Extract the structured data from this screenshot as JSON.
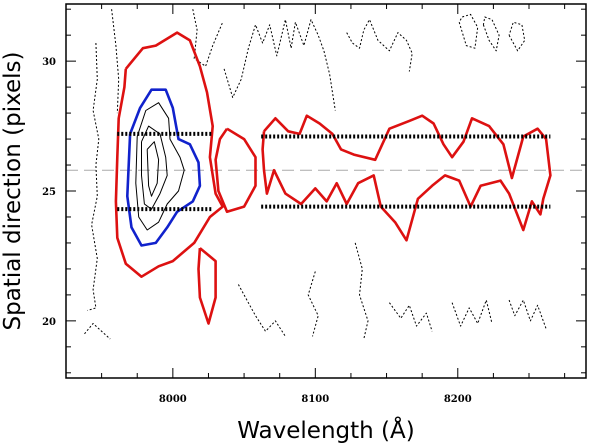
{
  "chart_data": {
    "type": "contour",
    "title": "",
    "xlabel": "Wavelength (Å)",
    "ylabel": "Spatial direction (pixels)",
    "xlim": [
      7925,
      8290
    ],
    "ylim": [
      17.8,
      32.2
    ],
    "x_ticks": [
      {
        "value": 8000,
        "label": "8000"
      },
      {
        "value": 8100,
        "label": "8100"
      },
      {
        "value": 8200,
        "label": "8200"
      }
    ],
    "y_ticks": [
      {
        "value": 30,
        "label": "30"
      },
      {
        "value": 25,
        "label": "25"
      },
      {
        "value": 20,
        "label": "20"
      }
    ],
    "y_axis_reversed": true,
    "grid": false,
    "legend": "none",
    "colors": {
      "outer_contour": "#dd1111",
      "inner_contour": "#1122cc",
      "core_contours": "#000000",
      "negative_contours": "#000000",
      "aperture_lines": "#000000",
      "trace_line": "#aaaaaa"
    },
    "trace": {
      "y": 25.8
    },
    "apertures": [
      {
        "x": [
          7961,
          8028
        ],
        "y_lower": 27.2,
        "y_upper": 24.3
      },
      {
        "x": [
          8062,
          8265
        ],
        "y_lower": 27.1,
        "y_upper": 24.4
      }
    ],
    "contours": [
      {
        "level": "outer",
        "points": [
          [
            7967,
            29.7
          ],
          [
            7979,
            30.5
          ],
          [
            7988,
            30.6
          ],
          [
            8003,
            31.1
          ],
          [
            8012,
            30.8
          ],
          [
            8019,
            29.8
          ],
          [
            8024,
            28.8
          ],
          [
            8028,
            27.5
          ],
          [
            8026,
            26.3
          ],
          [
            8030,
            24.9
          ],
          [
            8035,
            24.4
          ],
          [
            8026,
            24.0
          ],
          [
            8015,
            23.0
          ],
          [
            8000,
            22.3
          ],
          [
            7990,
            22.1
          ],
          [
            7978,
            21.7
          ],
          [
            7967,
            22.2
          ],
          [
            7961,
            23.2
          ],
          [
            7960,
            24.6
          ],
          [
            7961,
            26.3
          ],
          [
            7962,
            27.8
          ],
          [
            7966,
            29.0
          ],
          [
            7967,
            29.7
          ]
        ]
      },
      {
        "level": "outer",
        "points": [
          [
            8038,
            27.4
          ],
          [
            8050,
            27.0
          ],
          [
            8058,
            26.3
          ],
          [
            8058,
            25.2
          ],
          [
            8050,
            24.4
          ],
          [
            8038,
            24.2
          ],
          [
            8032,
            25.0
          ],
          [
            8030,
            26.2
          ],
          [
            8033,
            27.0
          ],
          [
            8038,
            27.4
          ]
        ]
      },
      {
        "level": "outer",
        "points": [
          [
            8019,
            22.8
          ],
          [
            8030,
            22.3
          ],
          [
            8030,
            20.9
          ],
          [
            8025,
            19.9
          ],
          [
            8019,
            20.9
          ],
          [
            8018,
            22.0
          ],
          [
            8019,
            22.8
          ]
        ]
      },
      {
        "level": "outer",
        "points": [
          [
            8064,
            27.3
          ],
          [
            8072,
            27.8
          ],
          [
            8081,
            27.3
          ],
          [
            8089,
            27.2
          ],
          [
            8094,
            27.9
          ],
          [
            8103,
            27.6
          ],
          [
            8112,
            27.2
          ],
          [
            8118,
            26.6
          ],
          [
            8127,
            26.4
          ],
          [
            8142,
            26.2
          ],
          [
            8152,
            27.4
          ],
          [
            8166,
            27.7
          ],
          [
            8175,
            27.9
          ],
          [
            8183,
            27.6
          ],
          [
            8190,
            26.8
          ],
          [
            8196,
            26.3
          ],
          [
            8204,
            26.9
          ],
          [
            8210,
            27.8
          ],
          [
            8222,
            27.5
          ],
          [
            8232,
            26.8
          ],
          [
            8238,
            25.5
          ],
          [
            8246,
            27.1
          ],
          [
            8256,
            27.4
          ],
          [
            8262,
            27.0
          ],
          [
            8265,
            25.6
          ],
          [
            8260,
            24.7
          ],
          [
            8258,
            24.1
          ],
          [
            8252,
            24.6
          ],
          [
            8246,
            23.5
          ],
          [
            8241,
            24.2
          ],
          [
            8236,
            24.9
          ],
          [
            8230,
            25.4
          ],
          [
            8216,
            25.2
          ],
          [
            8209,
            24.4
          ],
          [
            8201,
            25.4
          ],
          [
            8191,
            25.6
          ],
          [
            8182,
            25.2
          ],
          [
            8172,
            24.7
          ],
          [
            8164,
            23.1
          ],
          [
            8156,
            23.8
          ],
          [
            8146,
            24.4
          ],
          [
            8141,
            25.6
          ],
          [
            8130,
            25.3
          ],
          [
            8122,
            24.5
          ],
          [
            8115,
            25.3
          ],
          [
            8108,
            24.6
          ],
          [
            8100,
            25.1
          ],
          [
            8090,
            24.5
          ],
          [
            8079,
            24.9
          ],
          [
            8071,
            25.8
          ],
          [
            8066,
            24.9
          ],
          [
            8064,
            25.8
          ],
          [
            8063,
            26.6
          ],
          [
            8064,
            27.3
          ]
        ]
      },
      {
        "level": "inner",
        "points": [
          [
            7970,
            27.2
          ],
          [
            7977,
            28.2
          ],
          [
            7985,
            28.9
          ],
          [
            7995,
            28.9
          ],
          [
            8000,
            28.2
          ],
          [
            8004,
            27.0
          ],
          [
            8012,
            26.8
          ],
          [
            8018,
            26.1
          ],
          [
            8019,
            25.2
          ],
          [
            8014,
            24.6
          ],
          [
            8003,
            24.2
          ],
          [
            7996,
            23.6
          ],
          [
            7988,
            23.0
          ],
          [
            7978,
            22.9
          ],
          [
            7971,
            23.6
          ],
          [
            7968,
            24.8
          ],
          [
            7969,
            26.0
          ],
          [
            7970,
            27.2
          ]
        ]
      },
      {
        "level": "core",
        "points": [
          [
            7975,
            27.1
          ],
          [
            7981,
            28.1
          ],
          [
            7990,
            28.4
          ],
          [
            7997,
            27.8
          ],
          [
            7998,
            27.0
          ],
          [
            8005,
            26.3
          ],
          [
            8008,
            25.8
          ],
          [
            8004,
            25.0
          ],
          [
            7996,
            24.5
          ],
          [
            7990,
            23.8
          ],
          [
            7982,
            23.5
          ],
          [
            7976,
            24.0
          ],
          [
            7974,
            25.3
          ],
          [
            7975,
            27.1
          ]
        ]
      },
      {
        "level": "core",
        "points": [
          [
            7978,
            26.9
          ],
          [
            7983,
            27.5
          ],
          [
            7991,
            27.2
          ],
          [
            7995,
            26.3
          ],
          [
            7996,
            25.6
          ],
          [
            7991,
            24.9
          ],
          [
            7985,
            24.3
          ],
          [
            7980,
            24.5
          ],
          [
            7978,
            25.6
          ],
          [
            7978,
            26.9
          ]
        ]
      },
      {
        "level": "core",
        "points": [
          [
            7982,
            26.6
          ],
          [
            7987,
            26.9
          ],
          [
            7990,
            26.2
          ],
          [
            7989,
            25.3
          ],
          [
            7985,
            24.8
          ],
          [
            7983,
            25.2
          ],
          [
            7982,
            26.6
          ]
        ]
      },
      {
        "level": "negative",
        "points": [
          [
            7946,
            30.7
          ],
          [
            7947,
            29.3
          ],
          [
            7944,
            28.1
          ],
          [
            7948,
            27.0
          ],
          [
            7946,
            26.0
          ],
          [
            7947,
            24.8
          ],
          [
            7943,
            23.7
          ],
          [
            7947,
            22.4
          ],
          [
            7944,
            21.2
          ],
          [
            7946,
            20.5
          ],
          [
            7940,
            20.4
          ]
        ]
      },
      {
        "level": "negative",
        "points": [
          [
            7957,
            32.0
          ],
          [
            7960,
            30.6
          ],
          [
            7962,
            29.3
          ],
          [
            7961,
            28.0
          ]
        ]
      },
      {
        "level": "negative",
        "points": [
          [
            8014,
            32.0
          ],
          [
            8017,
            31.2
          ],
          [
            8015,
            30.1
          ],
          [
            8023,
            29.8
          ],
          [
            8028,
            30.6
          ],
          [
            8035,
            31.5
          ]
        ]
      },
      {
        "level": "negative",
        "points": [
          [
            8036,
            29.7
          ],
          [
            8042,
            28.6
          ],
          [
            8048,
            29.3
          ],
          [
            8053,
            30.5
          ],
          [
            8058,
            31.4
          ],
          [
            8063,
            30.7
          ],
          [
            8068,
            31.4
          ],
          [
            8073,
            30.2
          ],
          [
            8079,
            31.6
          ],
          [
            8083,
            30.5
          ],
          [
            8086,
            31.5
          ],
          [
            8092,
            30.6
          ],
          [
            8097,
            31.6
          ],
          [
            8102,
            31.0
          ],
          [
            8106,
            30.4
          ],
          [
            8110,
            29.5
          ],
          [
            8114,
            28.1
          ]
        ]
      },
      {
        "level": "negative",
        "points": [
          [
            8122,
            31.1
          ],
          [
            8126,
            30.7
          ],
          [
            8131,
            30.5
          ],
          [
            8134,
            31.2
          ],
          [
            8138,
            31.6
          ],
          [
            8144,
            30.8
          ],
          [
            8152,
            30.4
          ],
          [
            8158,
            31.1
          ],
          [
            8164,
            30.8
          ],
          [
            8168,
            30.3
          ],
          [
            8166,
            29.6
          ]
        ]
      },
      {
        "level": "negative",
        "points": [
          [
            8201,
            31.5
          ],
          [
            8206,
            30.6
          ],
          [
            8212,
            30.5
          ],
          [
            8214,
            31.3
          ],
          [
            8209,
            31.8
          ],
          [
            8203,
            31.7
          ],
          [
            8201,
            31.5
          ]
        ]
      },
      {
        "level": "negative",
        "points": [
          [
            8218,
            31.4
          ],
          [
            8222,
            30.8
          ],
          [
            8227,
            30.4
          ],
          [
            8229,
            31.0
          ],
          [
            8224,
            31.6
          ],
          [
            8219,
            31.7
          ],
          [
            8218,
            31.4
          ]
        ]
      },
      {
        "level": "negative",
        "points": [
          [
            8236,
            31.0
          ],
          [
            8242,
            30.4
          ],
          [
            8247,
            30.8
          ],
          [
            8245,
            31.4
          ],
          [
            8239,
            31.5
          ],
          [
            8236,
            31.0
          ]
        ]
      },
      {
        "level": "negative",
        "points": [
          [
            8128,
            23.0
          ],
          [
            8133,
            22.0
          ],
          [
            8131,
            21.0
          ],
          [
            8137,
            20.0
          ],
          [
            8134,
            19.3
          ]
        ]
      },
      {
        "level": "negative",
        "points": [
          [
            8100,
            21.9
          ],
          [
            8095,
            21.0
          ],
          [
            8102,
            20.2
          ],
          [
            8098,
            19.4
          ]
        ]
      },
      {
        "level": "negative",
        "points": [
          [
            8046,
            21.4
          ],
          [
            8052,
            20.8
          ],
          [
            8058,
            20.2
          ],
          [
            8065,
            19.6
          ],
          [
            8072,
            20.0
          ],
          [
            8079,
            19.4
          ]
        ]
      },
      {
        "level": "negative",
        "points": [
          [
            8152,
            20.7
          ],
          [
            8160,
            20.1
          ],
          [
            8166,
            20.6
          ],
          [
            8171,
            19.8
          ],
          [
            8178,
            20.3
          ],
          [
            8182,
            19.6
          ]
        ]
      },
      {
        "level": "negative",
        "points": [
          [
            8196,
            20.7
          ],
          [
            8202,
            19.8
          ],
          [
            8208,
            20.5
          ],
          [
            8214,
            19.9
          ],
          [
            8220,
            20.8
          ],
          [
            8224,
            19.9
          ]
        ]
      },
      {
        "level": "negative",
        "points": [
          [
            8236,
            20.8
          ],
          [
            8240,
            20.2
          ],
          [
            8246,
            20.8
          ],
          [
            8251,
            20.0
          ],
          [
            8256,
            20.6
          ],
          [
            8262,
            19.7
          ]
        ]
      },
      {
        "level": "negative",
        "points": [
          [
            7938,
            19.5
          ],
          [
            7944,
            19.9
          ],
          [
            7950,
            19.6
          ],
          [
            7956,
            19.3
          ]
        ]
      }
    ]
  }
}
